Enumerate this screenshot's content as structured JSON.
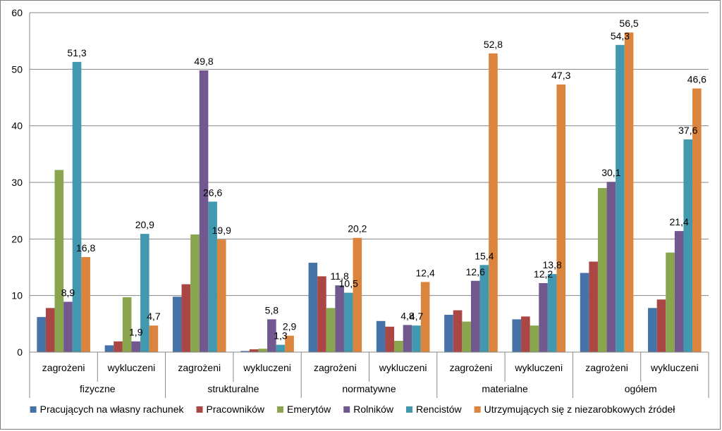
{
  "chart_data": {
    "type": "bar",
    "title": "",
    "xlabel": "",
    "ylabel": "",
    "ylim": [
      0,
      60
    ],
    "yticks": [
      "0",
      "10",
      "20",
      "30",
      "40",
      "50",
      "60"
    ],
    "grid": true,
    "legend_position": "bottom",
    "groups": [
      {
        "name": "fizyczne",
        "categories": [
          "zagrożeni",
          "wykluczeni"
        ]
      },
      {
        "name": "strukturalne",
        "categories": [
          "zagrożeni",
          "wykluczeni"
        ]
      },
      {
        "name": "normatywne",
        "categories": [
          "zagrożeni",
          "wykluczeni"
        ]
      },
      {
        "name": "materialne",
        "categories": [
          "zagrożeni",
          "wykluczeni"
        ]
      },
      {
        "name": "ogółem",
        "categories": [
          "zagrożeni",
          "wykluczeni"
        ]
      }
    ],
    "series": [
      {
        "name": "Pracujących na własny rachunek",
        "color": "#4572a7",
        "values": [
          6.2,
          1.2,
          9.8,
          0.2,
          15.8,
          5.5,
          6.6,
          5.8,
          14.0,
          7.8
        ],
        "labels": [
          "",
          "",
          "",
          "",
          "",
          "",
          "",
          "",
          "",
          ""
        ]
      },
      {
        "name": "Pracowników",
        "color": "#aa4643",
        "values": [
          7.8,
          1.9,
          12.0,
          0.5,
          13.4,
          4.5,
          7.4,
          6.3,
          16.0,
          9.3
        ],
        "labels": [
          "",
          "",
          "",
          "",
          "",
          "",
          "",
          "",
          "",
          ""
        ]
      },
      {
        "name": "Emerytów",
        "color": "#89a54e",
        "values": [
          32.2,
          9.7,
          20.8,
          0.6,
          7.8,
          2.0,
          5.4,
          4.7,
          29.0,
          17.6
        ],
        "labels": [
          "",
          "",
          "",
          "",
          "",
          "",
          "",
          "",
          "",
          ""
        ]
      },
      {
        "name": "Rolników",
        "color": "#71588f",
        "values": [
          8.9,
          1.9,
          49.8,
          5.8,
          11.8,
          4.8,
          12.6,
          12.2,
          30.1,
          21.4
        ],
        "labels": [
          "8,9",
          "1,9",
          "49,8",
          "5,8",
          "11,8",
          "4,8",
          "12,6",
          "12,2",
          "30,1",
          "21,4"
        ]
      },
      {
        "name": "Rencistów",
        "color": "#4198af",
        "values": [
          51.3,
          20.9,
          26.6,
          1.3,
          10.5,
          4.7,
          15.4,
          13.8,
          54.3,
          37.6
        ],
        "labels": [
          "51,3",
          "20,9",
          "26,6",
          "1,3",
          "10,5",
          "4,7",
          "15,4",
          "13,8",
          "54,3",
          "37,6"
        ]
      },
      {
        "name": "Utrzymujących się z niezarobkowych źródeł",
        "color": "#db843d",
        "values": [
          16.8,
          4.7,
          19.9,
          2.9,
          20.2,
          12.4,
          52.8,
          47.3,
          56.5,
          46.6
        ],
        "labels": [
          "16,8",
          "4,7",
          "19,9",
          "2,9",
          "20,2",
          "12,4",
          "52,8",
          "47,3",
          "56,5",
          "46,6"
        ]
      }
    ]
  }
}
